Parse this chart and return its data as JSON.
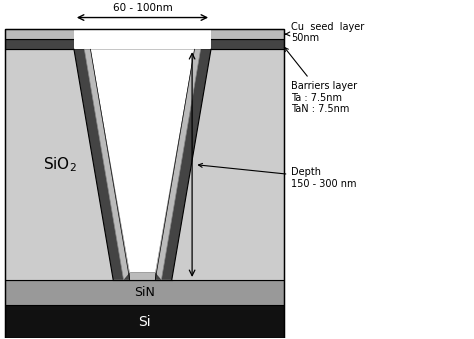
{
  "fig_width": 4.74,
  "fig_height": 3.39,
  "dpi": 100,
  "bg_color": "#ffffff",
  "colors": {
    "sio2": "#cccccc",
    "barrier_dark": "#444444",
    "barrier_mid": "#888888",
    "cu_seed": "#bbbbbb",
    "white": "#ffffff",
    "sin": "#999999",
    "si": "#111111",
    "outline": "#000000"
  },
  "labels": {
    "sio2": "$\\mathrm{SiO_2}$",
    "sin": "SiN",
    "si": "Si",
    "cu_seed": "Cu  seed  layer\n50nm",
    "barrier": "Barriers layer\nTa : 7.5nm\nTaN : 7.5nm",
    "depth": "Depth\n150 - 300 nm",
    "width": "60 - 100nm"
  }
}
